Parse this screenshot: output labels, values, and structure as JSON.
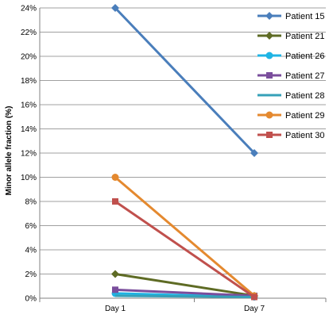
{
  "chart_data": {
    "type": "line",
    "title": "",
    "xlabel": "",
    "ylabel": "Minor allele fraction (%)",
    "categories": [
      "Day 1",
      "Day 7"
    ],
    "ylim": [
      0,
      24
    ],
    "yticks": [
      "0%",
      "2%",
      "4%",
      "6%",
      "8%",
      "10%",
      "12%",
      "14%",
      "16%",
      "18%",
      "20%",
      "22%",
      "24%"
    ],
    "grid": true,
    "legend_position": "right",
    "series": [
      {
        "name": "Patient 15",
        "values": [
          24,
          12
        ],
        "color": "#4a7ebb",
        "marker": "diamond"
      },
      {
        "name": "Patient 21",
        "values": [
          2.0,
          0.2
        ],
        "color": "#5e6b24",
        "marker": "diamond"
      },
      {
        "name": "Patient 26",
        "values": [
          0.4,
          0.1
        ],
        "color": "#1fb4e4",
        "marker": "circle"
      },
      {
        "name": "Patient 27",
        "values": [
          0.7,
          0.2
        ],
        "color": "#7a4d9c",
        "marker": "square"
      },
      {
        "name": "Patient 28",
        "values": [
          0.2,
          0.1
        ],
        "color": "#36a0b8",
        "marker": "none"
      },
      {
        "name": "Patient 29",
        "values": [
          10,
          0.2
        ],
        "color": "#e4892f",
        "marker": "circle"
      },
      {
        "name": "Patient 30",
        "values": [
          8,
          0.1
        ],
        "color": "#c0504d",
        "marker": "square"
      }
    ]
  }
}
